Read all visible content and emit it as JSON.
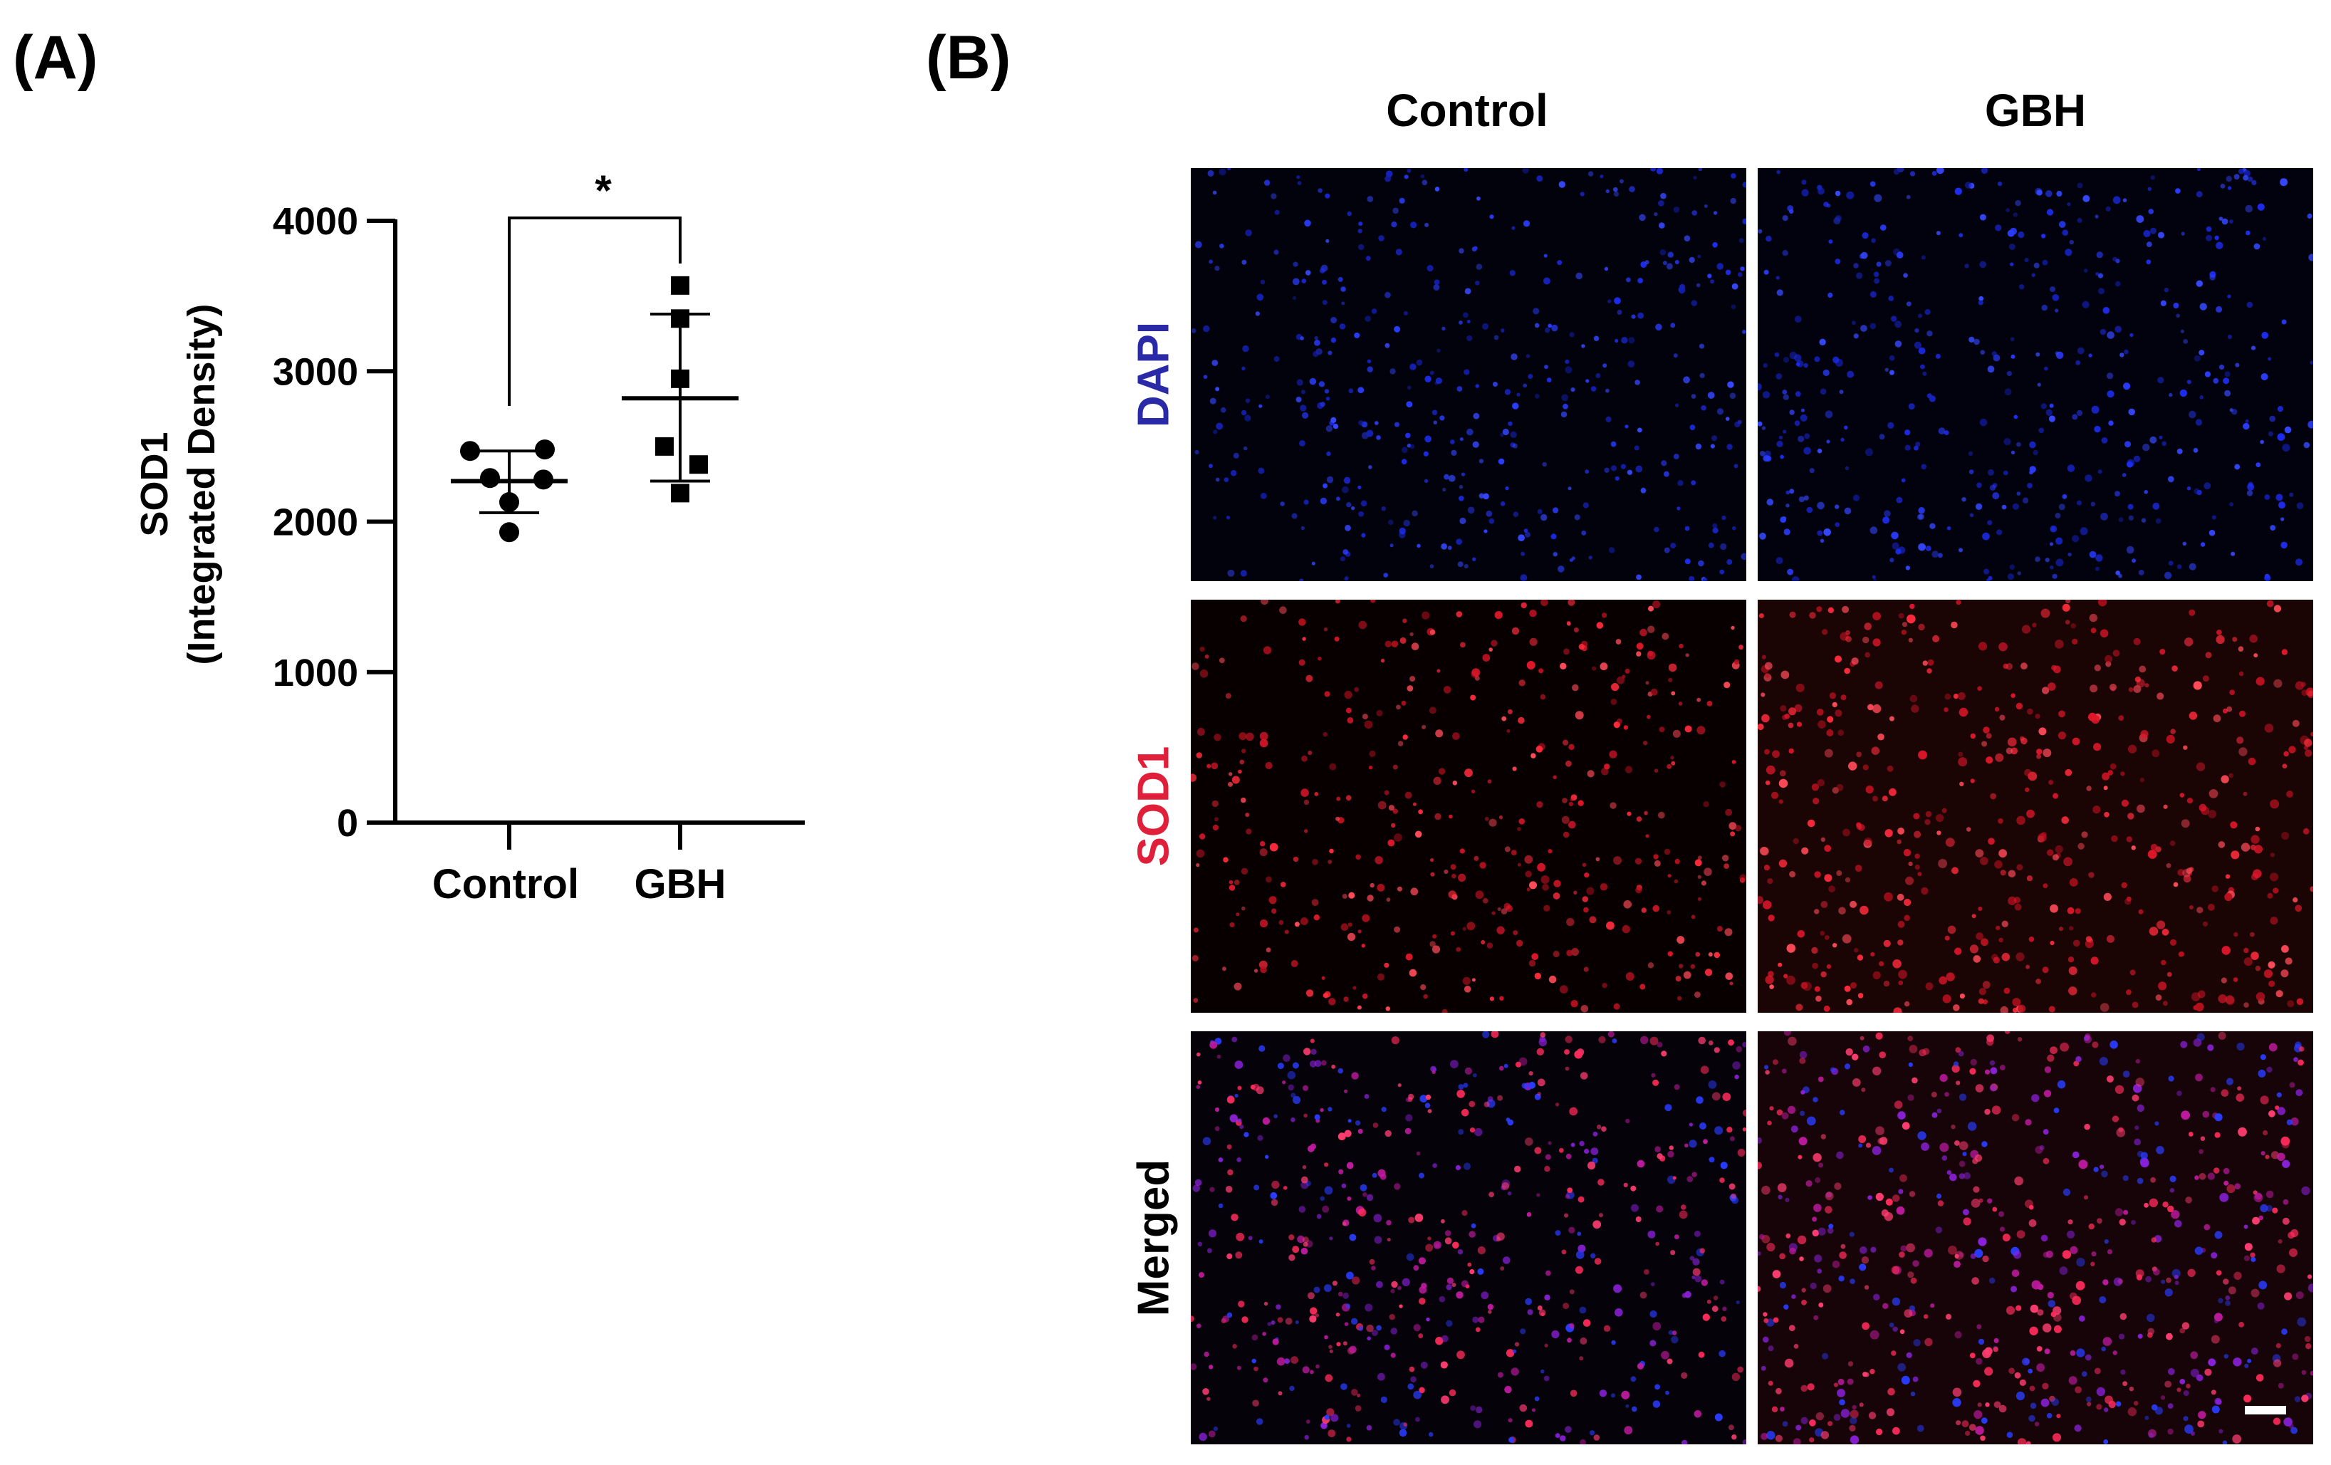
{
  "panel_a_label": "(A)",
  "panel_b_label": "(B)",
  "chart_data": {
    "type": "scatter",
    "title": "",
    "xlabel": "",
    "ylabel_line1": "SOD1",
    "ylabel_line2": "(Integrated Density)",
    "categories": [
      "Control",
      "GBH"
    ],
    "ylim": [
      0,
      4000
    ],
    "yticks": [
      "0",
      "1000",
      "2000",
      "3000",
      "4000"
    ],
    "ytick_values": [
      0,
      1000,
      2000,
      3000,
      4000
    ],
    "series": [
      {
        "name": "Control",
        "marker": "circle",
        "values": [
          2470,
          2480,
          2290,
          2280,
          2130,
          1930
        ],
        "mean": 2270,
        "sd_low": 2060,
        "sd_high": 2470
      },
      {
        "name": "GBH",
        "marker": "square",
        "values": [
          3570,
          3350,
          2950,
          2500,
          2380,
          2190
        ],
        "mean": 2820,
        "sd_low": 2270,
        "sd_high": 3380
      }
    ],
    "significance": "*"
  },
  "panel_b": {
    "columns": [
      "Control",
      "GBH"
    ],
    "rows": [
      {
        "label": "DAPI",
        "color": "#2a2aa8"
      },
      {
        "label": "SOD1",
        "color": "#e0203a"
      },
      {
        "label": "Merged",
        "color": "#000000"
      }
    ]
  }
}
